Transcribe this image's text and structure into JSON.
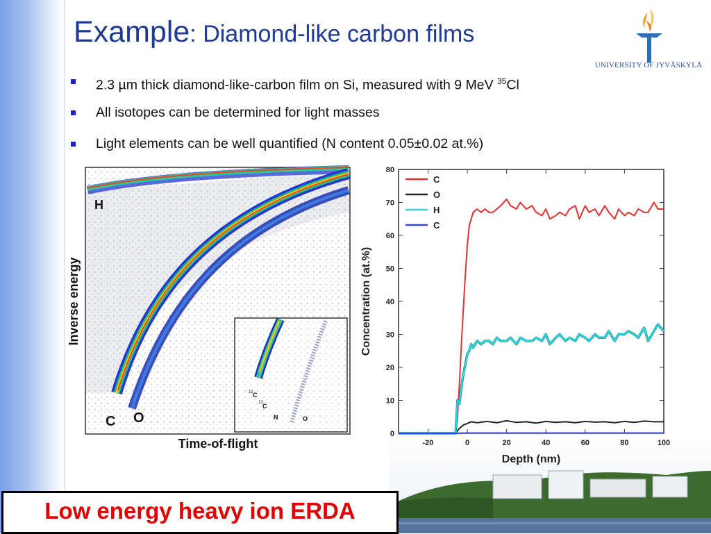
{
  "slide": {
    "title_main": "Example",
    "title_rest": ": Diamond-like carbon films",
    "logo_text": "UNIVERSITY OF JYVÄSKYLÄ",
    "bullets": [
      {
        "text": "2.3 µm thick diamond-like-carbon film on Si, measured with 9 MeV ",
        "sup": "35",
        "tail": "Cl"
      },
      {
        "text": "All isotopes can be determined for light masses"
      },
      {
        "text": "Light elements can be well quantified (N content 0.05±0.02 at.%)"
      }
    ],
    "banner": "Low energy heavy ion ERDA"
  },
  "spectrum": {
    "y_label": "Inverse energy",
    "x_label": "Time-of-flight",
    "labels": {
      "H": "H",
      "C": "C",
      "O": "O"
    },
    "inset_labels": {
      "c12_mass": "12",
      "c12": "C",
      "c13_mass": "13",
      "c13": "C",
      "n": "N",
      "o": "O"
    }
  },
  "chart_data": {
    "type": "line",
    "xlabel": "Depth (nm)",
    "ylabel": "Concentration (at.%)",
    "xlim": [
      -35,
      100
    ],
    "ylim": [
      0,
      80
    ],
    "x_ticks": [
      -20,
      0,
      20,
      40,
      60,
      80,
      100
    ],
    "y_ticks": [
      0,
      10,
      20,
      30,
      40,
      50,
      60,
      70,
      80
    ],
    "legend_position": "top-left",
    "series": [
      {
        "name": "C",
        "color": "#e03030",
        "x": [
          -35,
          -6,
          -5,
          -4,
          -3,
          -2,
          -1,
          0,
          1,
          2,
          3,
          5,
          7,
          9,
          11,
          13,
          15,
          17,
          20,
          22,
          25,
          27,
          30,
          33,
          35,
          38,
          40,
          42,
          45,
          47,
          50,
          52,
          55,
          57,
          60,
          62,
          65,
          67,
          70,
          72,
          75,
          77,
          80,
          82,
          85,
          87,
          90,
          92,
          95,
          97,
          100
        ],
        "y": [
          0,
          0,
          5,
          15,
          27,
          38,
          48,
          57,
          63,
          65,
          67,
          68,
          67,
          68,
          67,
          67,
          68,
          69,
          71,
          69,
          68,
          70,
          68,
          69,
          67,
          66,
          68,
          65,
          66,
          67,
          66,
          68,
          69,
          65,
          69,
          67,
          68,
          66,
          69,
          67,
          65,
          68,
          66,
          67,
          66,
          68,
          67,
          67,
          70,
          68,
          68
        ]
      },
      {
        "name": "O",
        "color": "#222222",
        "x": [
          -35,
          -6,
          -4,
          -2,
          0,
          2,
          5,
          10,
          15,
          20,
          25,
          30,
          35,
          40,
          45,
          50,
          55,
          60,
          65,
          70,
          75,
          80,
          85,
          90,
          95,
          100
        ],
        "y": [
          0,
          0,
          1.5,
          2.5,
          3,
          3.5,
          3.2,
          3.6,
          3.2,
          3.8,
          3.3,
          3.5,
          3.1,
          3.6,
          3.3,
          3.5,
          3.2,
          3.6,
          3.4,
          3.5,
          3.2,
          3.6,
          3.3,
          3.7,
          3.5,
          3.5
        ]
      },
      {
        "name": "H",
        "color": "#33d6d6",
        "x": [
          -35,
          -6,
          -5,
          -4,
          -3,
          -2,
          -1,
          0,
          1,
          2,
          3,
          5,
          7,
          9,
          11,
          13,
          15,
          17,
          20,
          22,
          25,
          27,
          30,
          33,
          35,
          38,
          40,
          42,
          45,
          47,
          50,
          52,
          55,
          57,
          60,
          62,
          65,
          67,
          70,
          72,
          75,
          77,
          80,
          82,
          85,
          87,
          90,
          92,
          95,
          97,
          100
        ],
        "y": [
          0,
          0,
          10,
          9,
          14,
          18,
          21,
          24,
          25,
          27,
          26,
          28,
          27,
          28,
          28,
          27,
          29,
          28,
          28,
          29,
          27,
          29,
          28,
          28,
          29,
          28,
          30,
          27,
          29,
          30,
          28,
          29,
          28,
          30,
          29,
          28,
          30,
          29,
          29,
          31,
          28,
          30,
          30,
          31,
          30,
          29,
          32,
          28,
          31,
          33,
          31
        ]
      },
      {
        "name": "C",
        "color": "#3344ff",
        "x": [
          -35,
          -6,
          0,
          20,
          40,
          60,
          80,
          100
        ],
        "y": [
          0,
          0,
          0.1,
          0.1,
          0.1,
          0.1,
          0.1,
          0.1
        ]
      }
    ]
  }
}
